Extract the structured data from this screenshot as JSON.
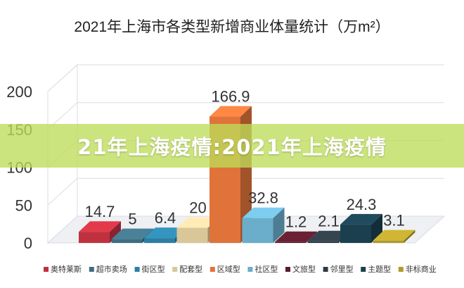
{
  "chart_data": {
    "type": "bar",
    "title": "2021年上海市各类型新增商业体量统计（万m²）",
    "categories": [
      "奥特莱斯",
      "超市卖场",
      "街区型",
      "配套型",
      "区域型",
      "社区型",
      "文旅型",
      "邻里型",
      "主题型",
      "非标商业"
    ],
    "values": [
      14.7,
      5,
      6.4,
      20,
      166.9,
      32.8,
      1.2,
      2.1,
      24.3,
      3.1
    ],
    "value_labels": [
      "14.7",
      "5",
      "6.4",
      "20",
      "166.9",
      "32.8",
      "1.2",
      "2.1",
      "24.3",
      "3.1"
    ],
    "colors": [
      "#c0313f",
      "#3e6d82",
      "#2c7fa3",
      "#d9c79a",
      "#e0733a",
      "#6aaecb",
      "#5b1b2c",
      "#2e3a44",
      "#1b3f4f",
      "#b09a2a"
    ],
    "yticks": [
      "0",
      "50",
      "100",
      "150",
      "200"
    ],
    "ylim": [
      0,
      200
    ],
    "grid": true,
    "legend": "bottom"
  },
  "overlay": {
    "banner_text": "21年上海疫情:2021年上海疫情"
  }
}
